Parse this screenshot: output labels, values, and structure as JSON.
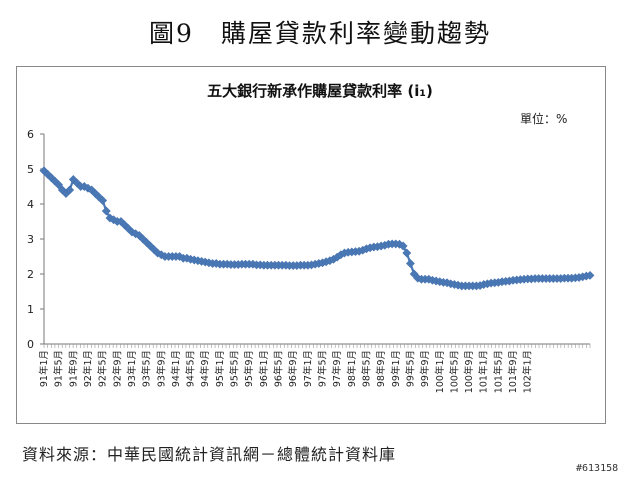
{
  "figure_title": "圖9　購屋貸款利率變動趨勢",
  "source": "資料來源：中華民國統計資訊網－總體統計資料庫",
  "watermark": "#613158",
  "chart_data": {
    "type": "line",
    "title": "五大銀行新承作購屋貸款利率 (i₁)",
    "unit": "單位：%",
    "xlabel": "",
    "ylabel": "",
    "ylim": [
      0,
      6
    ],
    "yticks": [
      0,
      1,
      2,
      3,
      4,
      5,
      6
    ],
    "grid": false,
    "legend": "none",
    "marker": "diamond",
    "color": "#4a78b5",
    "x_tick_labels": [
      "91年1月",
      "91年5月",
      "91年9月",
      "92年1月",
      "92年5月",
      "92年9月",
      "93年1月",
      "93年5月",
      "93年9月",
      "94年1月",
      "94年5月",
      "94年9月",
      "95年1月",
      "95年5月",
      "95年9月",
      "96年1月",
      "96年5月",
      "96年9月",
      "97年1月",
      "97年5月",
      "97年9月",
      "98年1月",
      "98年5月",
      "98年9月",
      "99年1月",
      "99年5月",
      "99年9月",
      "100年1月",
      "100年5月",
      "100年9月",
      "101年1月",
      "101年5月",
      "101年9月",
      "102年1月"
    ],
    "values": [
      4.95,
      4.85,
      4.75,
      4.65,
      4.55,
      4.4,
      4.3,
      4.4,
      4.7,
      4.6,
      4.5,
      4.5,
      4.45,
      4.4,
      4.3,
      4.2,
      4.1,
      3.8,
      3.6,
      3.55,
      3.5,
      3.5,
      3.4,
      3.3,
      3.2,
      3.15,
      3.1,
      3.0,
      2.9,
      2.8,
      2.7,
      2.6,
      2.55,
      2.5,
      2.5,
      2.5,
      2.5,
      2.5,
      2.45,
      2.45,
      2.42,
      2.4,
      2.38,
      2.36,
      2.34,
      2.32,
      2.3,
      2.3,
      2.28,
      2.28,
      2.28,
      2.27,
      2.27,
      2.27,
      2.28,
      2.28,
      2.28,
      2.28,
      2.26,
      2.26,
      2.25,
      2.25,
      2.25,
      2.25,
      2.25,
      2.25,
      2.25,
      2.24,
      2.24,
      2.24,
      2.25,
      2.25,
      2.25,
      2.26,
      2.28,
      2.3,
      2.32,
      2.35,
      2.38,
      2.42,
      2.48,
      2.55,
      2.6,
      2.62,
      2.63,
      2.64,
      2.65,
      2.68,
      2.72,
      2.75,
      2.77,
      2.78,
      2.8,
      2.82,
      2.85,
      2.86,
      2.86,
      2.85,
      2.8,
      2.6,
      2.3,
      2.0,
      1.88,
      1.85,
      1.85,
      1.85,
      1.82,
      1.8,
      1.78,
      1.76,
      1.75,
      1.72,
      1.7,
      1.68,
      1.66,
      1.66,
      1.66,
      1.66,
      1.66,
      1.67,
      1.7,
      1.72,
      1.74,
      1.75,
      1.76,
      1.78,
      1.79,
      1.8,
      1.82,
      1.83,
      1.84,
      1.85,
      1.86,
      1.86,
      1.87,
      1.87,
      1.87,
      1.87,
      1.87,
      1.87,
      1.87,
      1.87,
      1.88,
      1.88,
      1.88,
      1.89,
      1.9,
      1.92,
      1.94,
      1.96
    ]
  }
}
